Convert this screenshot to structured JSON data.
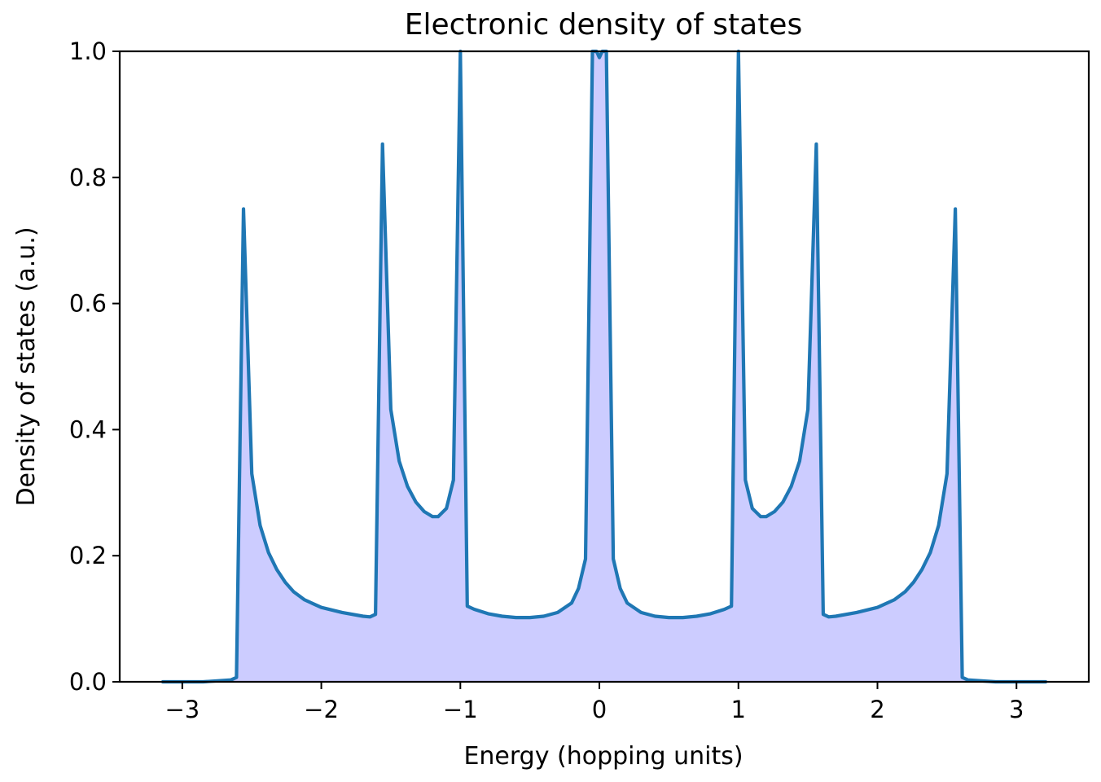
{
  "chart_data": {
    "type": "area",
    "title": "Electronic density of states",
    "xlabel": "Energy (hopping units)",
    "ylabel": "Density of states (a.u.)",
    "xlim": [
      -3.45,
      3.52
    ],
    "ylim": [
      0.0,
      1.0
    ],
    "xticks": [
      -3,
      -2,
      -1,
      0,
      1,
      2,
      3
    ],
    "xtick_labels": [
      "−3",
      "−2",
      "−1",
      "0",
      "1",
      "2",
      "3"
    ],
    "yticks": [
      0.0,
      0.2,
      0.4,
      0.6,
      0.8,
      1.0
    ],
    "ytick_labels": [
      "0.0",
      "0.2",
      "0.4",
      "0.6",
      "0.8",
      "1.0"
    ],
    "grid": false,
    "legend": "none",
    "line_color": "#1f77b4",
    "fill_color": "#ccccff",
    "series": [
      {
        "x": [
          -3.14,
          -2.85,
          -2.65,
          -2.61,
          -2.56,
          -2.5,
          -2.44,
          -2.38,
          -2.32,
          -2.26,
          -2.2,
          -2.12,
          -2.0,
          -1.85,
          -1.7,
          -1.65,
          -1.61,
          -1.56,
          -1.5,
          -1.44,
          -1.38,
          -1.32,
          -1.26,
          -1.2,
          -1.16,
          -1.1,
          -1.05,
          -1.0,
          -0.95,
          -0.9,
          -0.8,
          -0.7,
          -0.6,
          -0.5,
          -0.4,
          -0.3,
          -0.2,
          -0.15,
          -0.1,
          -0.05,
          -0.02,
          0.0,
          0.02,
          0.05,
          0.1,
          0.15,
          0.2,
          0.3,
          0.4,
          0.5,
          0.6,
          0.7,
          0.8,
          0.9,
          0.95,
          1.0,
          1.05,
          1.1,
          1.16,
          1.2,
          1.26,
          1.32,
          1.38,
          1.44,
          1.5,
          1.56,
          1.61,
          1.65,
          1.7,
          1.85,
          2.0,
          2.12,
          2.2,
          2.26,
          2.32,
          2.38,
          2.44,
          2.5,
          2.56,
          2.61,
          2.65,
          2.85,
          3.21
        ],
        "y": [
          0.0,
          0.0,
          0.003,
          0.007,
          0.75,
          0.33,
          0.248,
          0.205,
          0.178,
          0.158,
          0.143,
          0.13,
          0.118,
          0.11,
          0.104,
          0.103,
          0.107,
          0.853,
          0.432,
          0.35,
          0.31,
          0.285,
          0.27,
          0.262,
          0.262,
          0.275,
          0.32,
          1.0,
          0.12,
          0.115,
          0.108,
          0.104,
          0.102,
          0.102,
          0.104,
          0.11,
          0.125,
          0.148,
          0.195,
          1.0,
          1.0,
          0.99,
          1.0,
          1.0,
          0.195,
          0.148,
          0.125,
          0.11,
          0.104,
          0.102,
          0.102,
          0.104,
          0.108,
          0.115,
          0.12,
          1.0,
          0.32,
          0.275,
          0.262,
          0.262,
          0.27,
          0.285,
          0.31,
          0.35,
          0.432,
          0.853,
          0.107,
          0.103,
          0.104,
          0.11,
          0.118,
          0.13,
          0.143,
          0.158,
          0.178,
          0.205,
          0.248,
          0.33,
          0.75,
          0.007,
          0.003,
          0.0,
          0.0
        ]
      }
    ]
  }
}
